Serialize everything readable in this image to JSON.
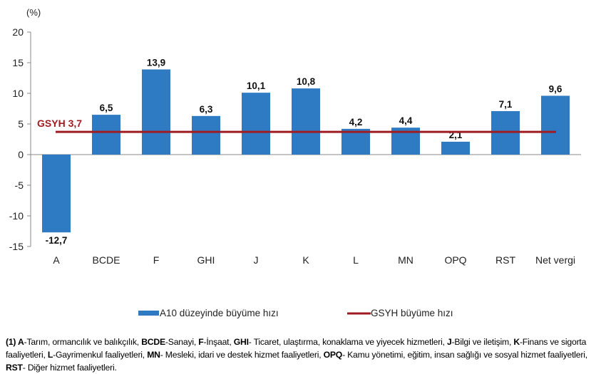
{
  "chart_data": {
    "type": "bar",
    "ylabel": "(%)",
    "ylim": [
      -15,
      20
    ],
    "yticks": [
      -15,
      -10,
      -5,
      0,
      5,
      10,
      15,
      20
    ],
    "categories": [
      "A",
      "BCDE",
      "F",
      "GHI",
      "J",
      "K",
      "L",
      "MN",
      "OPQ",
      "RST",
      "Net vergi"
    ],
    "series": [
      {
        "name": "A10 düzeyinde büyüme hızı",
        "type": "bar",
        "color": "#2E7BC4",
        "values": [
          -12.7,
          6.5,
          13.9,
          6.3,
          10.1,
          10.8,
          4.2,
          4.4,
          2.1,
          7.1,
          9.6
        ],
        "labels": [
          "-12,7",
          "6,5",
          "13,9",
          "6,3",
          "10,1",
          "10,8",
          "4,2",
          "4,4",
          "2,1",
          "7,1",
          "9,6"
        ]
      },
      {
        "name": "GSYH büyüme hızı",
        "type": "line",
        "color": "#A01C23",
        "value": 3.7,
        "label": "GSYH 3,7"
      }
    ],
    "grid": false,
    "legend": "bottom"
  },
  "footnote": [
    {
      "t": "(1) ",
      "b": true
    },
    {
      "t": "A",
      "b": true
    },
    {
      "t": "-Tarım, ormancılık ve balıkçılık, "
    },
    {
      "t": "BCDE",
      "b": true
    },
    {
      "t": "-Sanayi, "
    },
    {
      "t": "F",
      "b": true
    },
    {
      "t": "-İnşaat, "
    },
    {
      "t": "GHI",
      "b": true
    },
    {
      "t": "- Ticaret, ulaştırma, konaklama ve yiyecek hizmetleri, "
    },
    {
      "t": "J",
      "b": true
    },
    {
      "t": "-Bilgi ve iletişim, "
    },
    {
      "t": "K",
      "b": true
    },
    {
      "t": "-Finans ve sigorta faaliyetleri, "
    },
    {
      "t": "L",
      "b": true
    },
    {
      "t": "-Gayrimenkul faaliyetleri, "
    },
    {
      "t": "MN",
      "b": true
    },
    {
      "t": "- Mesleki, idari ve destek hizmet faaliyetleri, "
    },
    {
      "t": "OPQ",
      "b": true
    },
    {
      "t": "- Kamu yönetimi, eğitim, insan sağlığı ve sosyal hizmet faaliyetleri, "
    },
    {
      "t": "RST",
      "b": true
    },
    {
      "t": "- Diğer hizmet faaliyetleri."
    }
  ]
}
